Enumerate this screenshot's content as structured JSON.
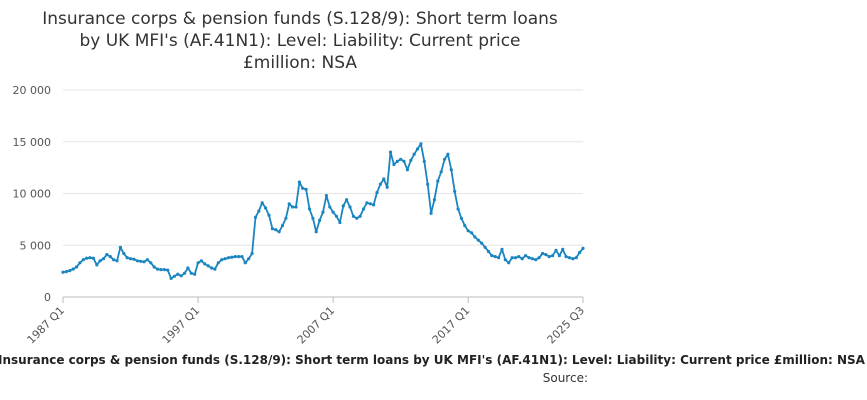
{
  "chart_data": {
    "type": "line",
    "title_lines": [
      "Insurance corps & pension funds (S.128/9): Short term loans",
      "by UK MFI's (AF.41N1): Level: Liability: Current price",
      "£million: NSA"
    ],
    "ylim": [
      0,
      20000
    ],
    "y_ticks": [
      {
        "value": 0,
        "label": "0"
      },
      {
        "value": 5000,
        "label": "5 000"
      },
      {
        "value": 10000,
        "label": "10 000"
      },
      {
        "value": 15000,
        "label": "15 000"
      },
      {
        "value": 20000,
        "label": "20 000"
      }
    ],
    "x_range": [
      1987.0,
      2025.5
    ],
    "x_ticks": [
      {
        "value": 1987.0,
        "label": "1987 Q1"
      },
      {
        "value": 1997.0,
        "label": "1997 Q1"
      },
      {
        "value": 2007.0,
        "label": "2007 Q1"
      },
      {
        "value": 2017.0,
        "label": "2017 Q1"
      },
      {
        "value": 2025.5,
        "label": "2025 Q3"
      }
    ],
    "grid": true,
    "color": "#1a85c0",
    "series": [
      {
        "name": "Insurance corps & pension funds (S.128/9): Short term loans by UK MFI's (AF.41N1): Level: Liability: Current price £million: NSA",
        "points": [
          [
            1987.0,
            2400
          ],
          [
            1987.25,
            2450
          ],
          [
            1987.5,
            2550
          ],
          [
            1987.75,
            2700
          ],
          [
            1988.0,
            2900
          ],
          [
            1988.25,
            3300
          ],
          [
            1988.5,
            3600
          ],
          [
            1988.75,
            3750
          ],
          [
            1989.0,
            3800
          ],
          [
            1989.25,
            3750
          ],
          [
            1989.5,
            3100
          ],
          [
            1989.75,
            3500
          ],
          [
            1990.0,
            3700
          ],
          [
            1990.25,
            4100
          ],
          [
            1990.5,
            3900
          ],
          [
            1990.75,
            3600
          ],
          [
            1991.0,
            3500
          ],
          [
            1991.25,
            4800
          ],
          [
            1991.5,
            4200
          ],
          [
            1991.75,
            3800
          ],
          [
            1992.0,
            3700
          ],
          [
            1992.25,
            3650
          ],
          [
            1992.5,
            3500
          ],
          [
            1992.75,
            3450
          ],
          [
            1993.0,
            3400
          ],
          [
            1993.25,
            3600
          ],
          [
            1993.5,
            3300
          ],
          [
            1993.75,
            2900
          ],
          [
            1994.0,
            2700
          ],
          [
            1994.25,
            2650
          ],
          [
            1994.5,
            2650
          ],
          [
            1994.75,
            2600
          ],
          [
            1995.0,
            1800
          ],
          [
            1995.25,
            2000
          ],
          [
            1995.5,
            2200
          ],
          [
            1995.75,
            2050
          ],
          [
            1996.0,
            2300
          ],
          [
            1996.25,
            2800
          ],
          [
            1996.5,
            2300
          ],
          [
            1996.75,
            2200
          ],
          [
            1997.0,
            3300
          ],
          [
            1997.25,
            3500
          ],
          [
            1997.5,
            3200
          ],
          [
            1997.75,
            3000
          ],
          [
            1998.0,
            2800
          ],
          [
            1998.25,
            2700
          ],
          [
            1998.5,
            3300
          ],
          [
            1998.75,
            3600
          ],
          [
            1999.0,
            3700
          ],
          [
            1999.25,
            3800
          ],
          [
            1999.5,
            3850
          ],
          [
            1999.75,
            3900
          ],
          [
            2000.0,
            3900
          ],
          [
            2000.25,
            3900
          ],
          [
            2000.5,
            3300
          ],
          [
            2000.75,
            3700
          ],
          [
            2001.0,
            4200
          ],
          [
            2001.25,
            7700
          ],
          [
            2001.5,
            8300
          ],
          [
            2001.75,
            9100
          ],
          [
            2002.0,
            8600
          ],
          [
            2002.25,
            7900
          ],
          [
            2002.5,
            6600
          ],
          [
            2002.75,
            6500
          ],
          [
            2003.0,
            6300
          ],
          [
            2003.25,
            6900
          ],
          [
            2003.5,
            7600
          ],
          [
            2003.75,
            9000
          ],
          [
            2004.0,
            8700
          ],
          [
            2004.25,
            8700
          ],
          [
            2004.5,
            11100
          ],
          [
            2004.75,
            10500
          ],
          [
            2005.0,
            10400
          ],
          [
            2005.25,
            8500
          ],
          [
            2005.5,
            7600
          ],
          [
            2005.75,
            6300
          ],
          [
            2006.0,
            7400
          ],
          [
            2006.25,
            8200
          ],
          [
            2006.5,
            9800
          ],
          [
            2006.75,
            8700
          ],
          [
            2007.0,
            8200
          ],
          [
            2007.25,
            7800
          ],
          [
            2007.5,
            7200
          ],
          [
            2007.75,
            8800
          ],
          [
            2008.0,
            9400
          ],
          [
            2008.25,
            8700
          ],
          [
            2008.5,
            7800
          ],
          [
            2008.75,
            7600
          ],
          [
            2009.0,
            7800
          ],
          [
            2009.25,
            8500
          ],
          [
            2009.5,
            9100
          ],
          [
            2009.75,
            9000
          ],
          [
            2010.0,
            8900
          ],
          [
            2010.25,
            10100
          ],
          [
            2010.5,
            10900
          ],
          [
            2010.75,
            11400
          ],
          [
            2011.0,
            10600
          ],
          [
            2011.25,
            14000
          ],
          [
            2011.5,
            12800
          ],
          [
            2011.75,
            13100
          ],
          [
            2012.0,
            13300
          ],
          [
            2012.25,
            13100
          ],
          [
            2012.5,
            12300
          ],
          [
            2012.75,
            13200
          ],
          [
            2013.0,
            13800
          ],
          [
            2013.25,
            14300
          ],
          [
            2013.5,
            14800
          ],
          [
            2013.75,
            13100
          ],
          [
            2014.0,
            10900
          ],
          [
            2014.25,
            8100
          ],
          [
            2014.5,
            9400
          ],
          [
            2014.75,
            11200
          ],
          [
            2015.0,
            12100
          ],
          [
            2015.25,
            13300
          ],
          [
            2015.5,
            13800
          ],
          [
            2015.75,
            12300
          ],
          [
            2016.0,
            10200
          ],
          [
            2016.25,
            8500
          ],
          [
            2016.5,
            7600
          ],
          [
            2016.75,
            6900
          ],
          [
            2017.0,
            6400
          ],
          [
            2017.25,
            6200
          ],
          [
            2017.5,
            5800
          ],
          [
            2017.75,
            5500
          ],
          [
            2018.0,
            5200
          ],
          [
            2018.25,
            4800
          ],
          [
            2018.5,
            4400
          ],
          [
            2018.75,
            4000
          ],
          [
            2019.0,
            3900
          ],
          [
            2019.25,
            3800
          ],
          [
            2019.5,
            4600
          ],
          [
            2019.75,
            3600
          ],
          [
            2020.0,
            3300
          ],
          [
            2020.25,
            3800
          ],
          [
            2020.5,
            3800
          ],
          [
            2020.75,
            3900
          ],
          [
            2021.0,
            3700
          ],
          [
            2021.25,
            4000
          ],
          [
            2021.5,
            3800
          ],
          [
            2021.75,
            3700
          ],
          [
            2022.0,
            3600
          ],
          [
            2022.25,
            3800
          ],
          [
            2022.5,
            4200
          ],
          [
            2022.75,
            4100
          ],
          [
            2023.0,
            3900
          ],
          [
            2023.25,
            4000
          ],
          [
            2023.5,
            4500
          ],
          [
            2023.75,
            4000
          ],
          [
            2024.0,
            4600
          ],
          [
            2024.25,
            3900
          ],
          [
            2024.5,
            3800
          ],
          [
            2024.75,
            3700
          ],
          [
            2025.0,
            3800
          ],
          [
            2025.25,
            4300
          ],
          [
            2025.5,
            4700
          ]
        ]
      }
    ]
  },
  "footer": {
    "series_label": "Insurance corps & pension funds (S.128/9): Short term loans by UK MFI's (AF.41N1): Level: Liability: Current price £million: NSA",
    "source_label": "Source:"
  }
}
